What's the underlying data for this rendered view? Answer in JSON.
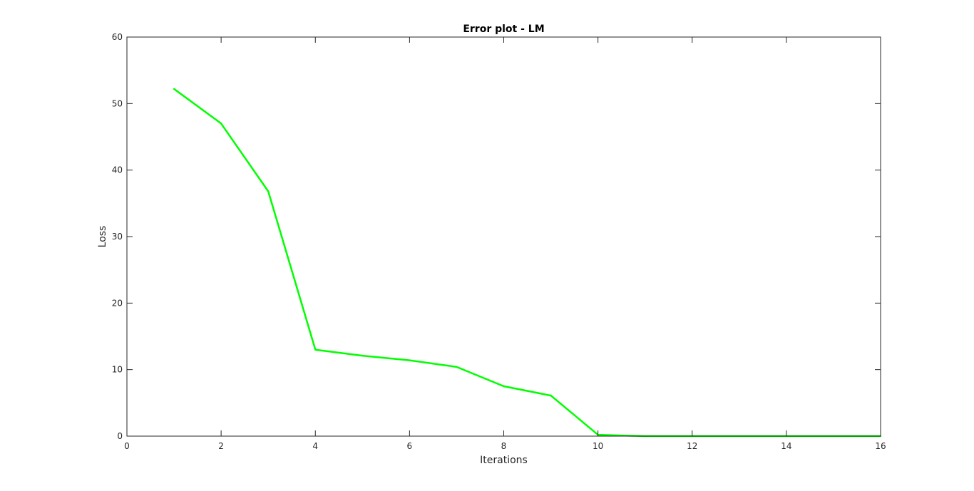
{
  "chart_data": {
    "type": "line",
    "title": "Error plot - LM",
    "xlabel": "Iterations",
    "ylabel": "Loss",
    "xlim": [
      0,
      16
    ],
    "ylim": [
      0,
      60
    ],
    "xticks": [
      0,
      2,
      4,
      6,
      8,
      10,
      12,
      14,
      16
    ],
    "yticks": [
      0,
      10,
      20,
      30,
      40,
      50,
      60
    ],
    "grid": false,
    "legend": "none",
    "series": [
      {
        "color": "#00ff00",
        "x": [
          1,
          2,
          3,
          4,
          5,
          6,
          7,
          8,
          9,
          10,
          11,
          12,
          13,
          14,
          15,
          16
        ],
        "y": [
          52.2,
          47.0,
          36.8,
          13.0,
          12.1,
          11.4,
          10.4,
          7.5,
          6.1,
          0.2,
          0.0,
          0.0,
          0.0,
          0.0,
          0.0,
          0.0
        ]
      }
    ]
  }
}
